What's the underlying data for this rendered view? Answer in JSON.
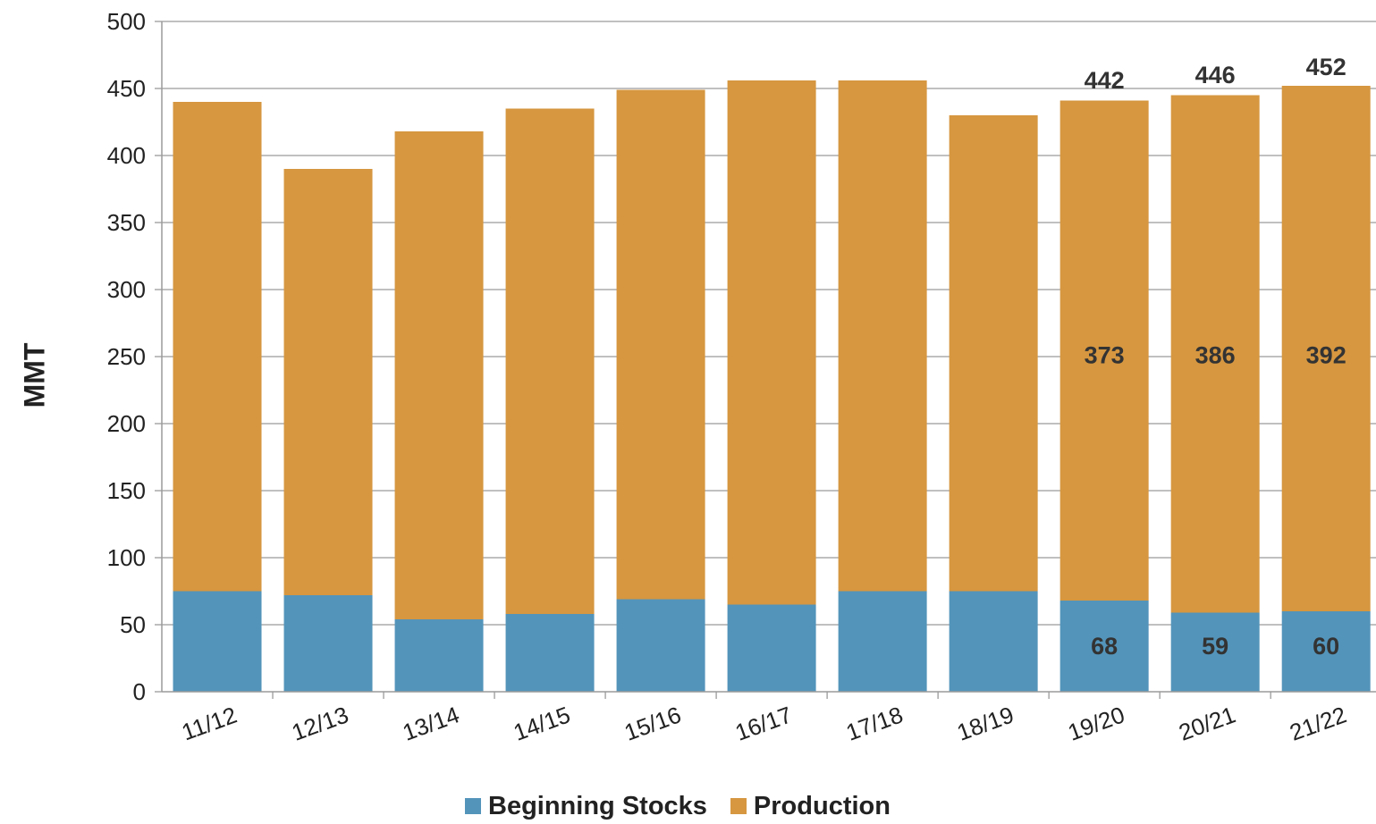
{
  "chart_data": {
    "type": "bar",
    "stacked": true,
    "categories": [
      "11/12",
      "12/13",
      "13/14",
      "14/15",
      "15/16",
      "16/17",
      "17/18",
      "18/19",
      "19/20",
      "20/21",
      "21/22"
    ],
    "series": [
      {
        "name": "Beginning Stocks",
        "color": "#5394BA",
        "values": [
          75,
          72,
          54,
          58,
          69,
          65,
          75,
          75,
          68,
          59,
          60
        ]
      },
      {
        "name": "Production",
        "color": "#D69740",
        "values": [
          365,
          318,
          364,
          377,
          380,
          391,
          381,
          355,
          373,
          386,
          392
        ]
      }
    ],
    "totals": [
      440,
      390,
      418,
      435,
      449,
      456,
      456,
      430,
      442,
      446,
      452
    ],
    "data_labels": {
      "stocks": [
        "",
        "",
        "",
        "",
        "",
        "",
        "",
        "",
        "68",
        "59",
        "60"
      ],
      "production": [
        "",
        "",
        "",
        "",
        "",
        "",
        "",
        "",
        "373",
        "386",
        "392"
      ],
      "total": [
        "",
        "",
        "",
        "",
        "",
        "",
        "",
        "",
        "442",
        "446",
        "452"
      ]
    },
    "xlabel": "",
    "ylabel": "MMT",
    "ylim": [
      0,
      500
    ],
    "yticks": [
      0,
      50,
      100,
      150,
      200,
      250,
      300,
      350,
      400,
      450,
      500
    ],
    "grid": true,
    "legend_position": "bottom"
  }
}
